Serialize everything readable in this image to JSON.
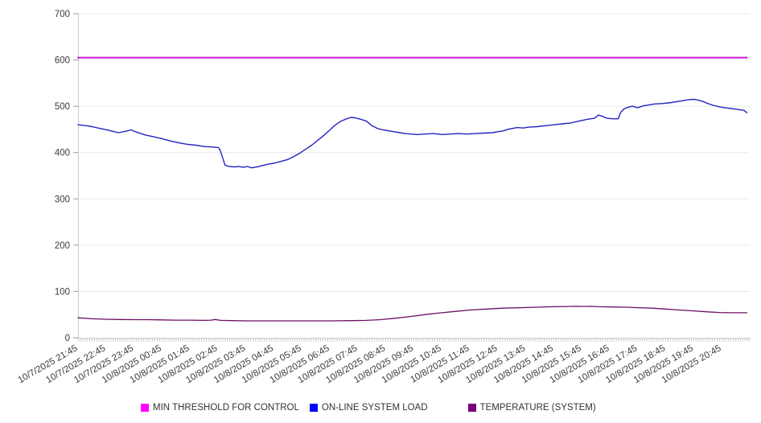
{
  "legend": {
    "items": [
      {
        "label": "MIN THRESHOLD FOR CONTROL",
        "swatch_color": "#ff00ff"
      },
      {
        "label": "ON-LINE SYSTEM LOAD",
        "swatch_color": "#0000ff"
      },
      {
        "label": "TEMPERATURE (SYSTEM)",
        "swatch_color": "#770077"
      }
    ]
  },
  "chart_data": {
    "type": "line",
    "title": "",
    "xlabel": "",
    "ylabel": "",
    "ylim": [
      0,
      700
    ],
    "y_ticks": [
      0,
      100,
      200,
      300,
      400,
      500,
      600,
      700
    ],
    "grid": "horizontal-light",
    "legend_position": "bottom",
    "x_hours_range": [
      0,
      24
    ],
    "minor_tick_every_hours": 0.08333,
    "x_tick_labels": [
      "10/7/2025 21:45",
      "10/7/2025 22:45",
      "10/7/2025 23:45",
      "10/8/2025 00:45",
      "10/8/2025 01:45",
      "10/8/2025 02:45",
      "10/8/2025 03:45",
      "10/8/2025 04:45",
      "10/8/2025 05:45",
      "10/8/2025 06:45",
      "10/8/2025 07:45",
      "10/8/2025 08:45",
      "10/8/2025 09:45",
      "10/8/2025 10:45",
      "10/8/2025 11:45",
      "10/8/2025 12:45",
      "10/8/2025 13:45",
      "10/8/2025 14:45",
      "10/8/2025 15:45",
      "10/8/2025 16:45",
      "10/8/2025 17:45",
      "10/8/2025 18:45",
      "10/8/2025 19:45",
      "10/8/2025 20:45"
    ],
    "series": [
      {
        "name": "MIN THRESHOLD FOR CONTROL",
        "line_color": "#d024d0",
        "width": 2.2,
        "points": [
          [
            0,
            605
          ],
          [
            23.9,
            605
          ]
        ]
      },
      {
        "name": "ON-LINE SYSTEM LOAD",
        "line_color": "#2424c0",
        "width": 1.4,
        "points": [
          [
            0,
            460
          ],
          [
            0.3,
            458
          ],
          [
            0.5,
            456
          ],
          [
            0.8,
            452
          ],
          [
            1.1,
            448
          ],
          [
            1.3,
            445
          ],
          [
            1.45,
            443
          ],
          [
            1.7,
            446
          ],
          [
            1.9,
            449
          ],
          [
            2.1,
            444
          ],
          [
            2.4,
            438
          ],
          [
            2.7,
            434
          ],
          [
            3.0,
            430
          ],
          [
            3.3,
            425
          ],
          [
            3.6,
            421
          ],
          [
            3.9,
            418
          ],
          [
            4.2,
            416
          ],
          [
            4.5,
            413
          ],
          [
            4.8,
            412
          ],
          [
            5.0,
            411
          ],
          [
            5.06,
            408
          ],
          [
            5.15,
            392
          ],
          [
            5.25,
            373
          ],
          [
            5.4,
            370
          ],
          [
            5.6,
            369
          ],
          [
            5.75,
            370
          ],
          [
            5.9,
            368
          ],
          [
            6.05,
            370
          ],
          [
            6.2,
            367
          ],
          [
            6.4,
            369
          ],
          [
            6.6,
            372
          ],
          [
            6.8,
            375
          ],
          [
            7.0,
            377
          ],
          [
            7.2,
            380
          ],
          [
            7.5,
            385
          ],
          [
            7.7,
            391
          ],
          [
            7.9,
            398
          ],
          [
            8.1,
            406
          ],
          [
            8.35,
            416
          ],
          [
            8.6,
            428
          ],
          [
            8.8,
            438
          ],
          [
            9.0,
            449
          ],
          [
            9.2,
            460
          ],
          [
            9.4,
            468
          ],
          [
            9.6,
            473
          ],
          [
            9.75,
            476
          ],
          [
            9.9,
            475
          ],
          [
            10.1,
            472
          ],
          [
            10.3,
            468
          ],
          [
            10.5,
            458
          ],
          [
            10.7,
            452
          ],
          [
            10.9,
            449
          ],
          [
            11.1,
            447
          ],
          [
            11.3,
            445
          ],
          [
            11.5,
            443
          ],
          [
            11.7,
            441
          ],
          [
            11.9,
            440
          ],
          [
            12.1,
            439
          ],
          [
            12.4,
            440
          ],
          [
            12.7,
            441
          ],
          [
            13.0,
            439
          ],
          [
            13.3,
            440
          ],
          [
            13.6,
            441
          ],
          [
            13.9,
            440
          ],
          [
            14.2,
            441
          ],
          [
            14.5,
            442
          ],
          [
            14.8,
            443
          ],
          [
            15.0,
            445
          ],
          [
            15.2,
            447
          ],
          [
            15.35,
            450
          ],
          [
            15.5,
            452
          ],
          [
            15.7,
            454
          ],
          [
            15.9,
            453
          ],
          [
            16.1,
            455
          ],
          [
            16.4,
            456
          ],
          [
            16.7,
            458
          ],
          [
            17.0,
            460
          ],
          [
            17.3,
            462
          ],
          [
            17.6,
            464
          ],
          [
            17.9,
            468
          ],
          [
            18.2,
            472
          ],
          [
            18.45,
            474
          ],
          [
            18.6,
            481
          ],
          [
            18.75,
            478
          ],
          [
            18.9,
            474
          ],
          [
            19.1,
            473
          ],
          [
            19.3,
            473
          ],
          [
            19.38,
            486
          ],
          [
            19.5,
            494
          ],
          [
            19.65,
            498
          ],
          [
            19.8,
            500
          ],
          [
            20.0,
            497
          ],
          [
            20.2,
            501
          ],
          [
            20.4,
            503
          ],
          [
            20.6,
            505
          ],
          [
            20.9,
            506
          ],
          [
            21.2,
            508
          ],
          [
            21.5,
            511
          ],
          [
            21.8,
            514
          ],
          [
            22.0,
            515
          ],
          [
            22.1,
            514
          ],
          [
            22.3,
            511
          ],
          [
            22.5,
            506
          ],
          [
            22.7,
            502
          ],
          [
            22.9,
            499
          ],
          [
            23.1,
            497
          ],
          [
            23.35,
            495
          ],
          [
            23.6,
            493
          ],
          [
            23.8,
            491
          ],
          [
            23.9,
            486
          ]
        ]
      },
      {
        "name": "TEMPERATURE (SYSTEM)",
        "line_color": "#6b0f63",
        "width": 1.3,
        "points": [
          [
            0,
            43
          ],
          [
            0.5,
            41
          ],
          [
            1.0,
            40
          ],
          [
            1.5,
            39.5
          ],
          [
            2.0,
            39
          ],
          [
            2.5,
            39
          ],
          [
            3.0,
            38.5
          ],
          [
            3.5,
            38
          ],
          [
            4.0,
            38
          ],
          [
            4.5,
            37.5
          ],
          [
            4.75,
            38
          ],
          [
            4.9,
            39.5
          ],
          [
            5.1,
            37.5
          ],
          [
            5.5,
            37
          ],
          [
            6.0,
            36.5
          ],
          [
            7.0,
            36.5
          ],
          [
            8.0,
            36.5
          ],
          [
            9.0,
            36.5
          ],
          [
            9.8,
            37
          ],
          [
            10.3,
            37.5
          ],
          [
            10.8,
            39
          ],
          [
            11.3,
            42
          ],
          [
            11.9,
            46
          ],
          [
            12.4,
            50
          ],
          [
            13.0,
            54
          ],
          [
            13.5,
            57
          ],
          [
            14.0,
            60
          ],
          [
            14.6,
            62
          ],
          [
            15.2,
            64
          ],
          [
            15.8,
            65
          ],
          [
            16.4,
            66
          ],
          [
            17.0,
            67
          ],
          [
            17.5,
            67.5
          ],
          [
            17.8,
            68
          ],
          [
            18.1,
            67.5
          ],
          [
            18.3,
            68
          ],
          [
            18.6,
            67
          ],
          [
            19.1,
            66.5
          ],
          [
            19.6,
            66
          ],
          [
            20.0,
            65
          ],
          [
            20.5,
            64
          ],
          [
            21.0,
            62
          ],
          [
            21.5,
            60
          ],
          [
            22.0,
            58
          ],
          [
            22.5,
            56
          ],
          [
            22.9,
            54.5
          ],
          [
            23.3,
            54
          ],
          [
            23.9,
            54
          ]
        ]
      }
    ]
  }
}
